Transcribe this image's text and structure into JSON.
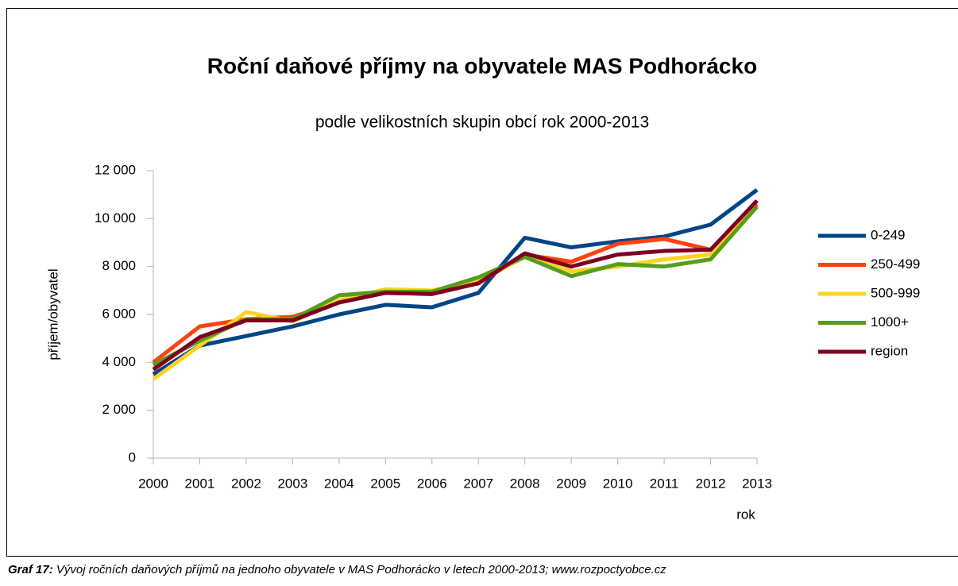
{
  "chart_data": {
    "type": "line",
    "title": "Roční daňové příjmy na obyvatele MAS Podhorácko",
    "subtitle": "podle velikostních skupin obcí rok 2000-2013",
    "y_label": "příjem/obyvatel",
    "x_label": "rok",
    "categories": [
      "2000",
      "2001",
      "2002",
      "2003",
      "2004",
      "2005",
      "2006",
      "2007",
      "2008",
      "2009",
      "2010",
      "2011",
      "2012",
      "2013"
    ],
    "series": [
      {
        "name": "0-249",
        "color": "#004586",
        "values": [
          3500,
          4700,
          5100,
          5500,
          6000,
          6400,
          6300,
          6900,
          9200,
          8800,
          9050,
          9250,
          9750,
          11200
        ]
      },
      {
        "name": "250-499",
        "color": "#ff420e",
        "values": [
          4000,
          5500,
          5800,
          5900,
          6500,
          6900,
          6950,
          7300,
          8500,
          8200,
          8950,
          9150,
          8700,
          10600
        ]
      },
      {
        "name": "500-999",
        "color": "#ffd320",
        "values": [
          3300,
          4700,
          6100,
          5700,
          6600,
          7050,
          7000,
          7400,
          8400,
          7800,
          8000,
          8300,
          8500,
          10500
        ]
      },
      {
        "name": "1000+",
        "color": "#579d1c",
        "values": [
          3900,
          4900,
          5800,
          5800,
          6800,
          6950,
          6950,
          7550,
          8400,
          7600,
          8100,
          8000,
          8300,
          10500
        ]
      },
      {
        "name": "region",
        "color": "#7e0021",
        "values": [
          3700,
          5050,
          5750,
          5750,
          6500,
          6900,
          6850,
          7300,
          8550,
          8000,
          8500,
          8650,
          8700,
          10750
        ]
      }
    ],
    "ylim": [
      0,
      12000
    ],
    "yticks": [
      0,
      {
        "value": 2000,
        "label": "2 000"
      },
      {
        "value": 4000,
        "label": "4 000"
      },
      {
        "value": 6000,
        "label": "6 000"
      },
      {
        "value": 8000,
        "label": "8 000"
      },
      {
        "value": 10000,
        "label": "10 000"
      },
      {
        "value": 12000,
        "label": "12 000"
      }
    ],
    "grid": false,
    "legend": "right"
  },
  "caption": {
    "label": "Graf 17:",
    "text": " Vývoj ročních daňových příjmů na jednoho obyvatele v MAS Podhorácko v letech 2000-2013; www.rozpoctyobce.cz"
  }
}
